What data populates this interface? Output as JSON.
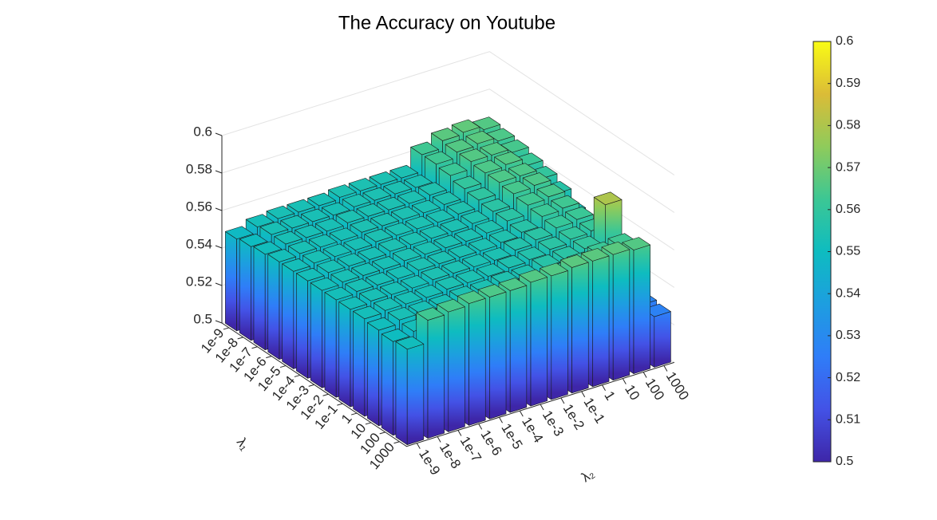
{
  "chart_data": {
    "type": "bar3",
    "title": "The Accuracy on Youtube",
    "x_label": "λ₂",
    "y_label": "λ₁",
    "x_categories": [
      "1e-9",
      "1e-8",
      "1e-7",
      "1e-6",
      "1e-5",
      "1e-4",
      "1e-3",
      "1e-2",
      "1e-1",
      "1",
      "10",
      "100",
      "1000"
    ],
    "y_categories": [
      "1e-9",
      "1e-8",
      "1e-7",
      "1e-6",
      "1e-5",
      "1e-4",
      "1e-3",
      "1e-2",
      "1e-1",
      "1",
      "10",
      "100",
      "1000"
    ],
    "values": [
      [
        0.549,
        0.552,
        0.553,
        0.553,
        0.553,
        0.554,
        0.554,
        0.554,
        0.554,
        0.563,
        0.567,
        0.568,
        0.566
      ],
      [
        0.55,
        0.553,
        0.553,
        0.553,
        0.553,
        0.554,
        0.554,
        0.554,
        0.554,
        0.563,
        0.566,
        0.567,
        0.565
      ],
      [
        0.551,
        0.553,
        0.553,
        0.553,
        0.554,
        0.554,
        0.554,
        0.554,
        0.555,
        0.562,
        0.566,
        0.566,
        0.564
      ],
      [
        0.552,
        0.553,
        0.553,
        0.553,
        0.554,
        0.554,
        0.554,
        0.554,
        0.555,
        0.56,
        0.565,
        0.566,
        0.562
      ],
      [
        0.552,
        0.553,
        0.553,
        0.553,
        0.554,
        0.554,
        0.554,
        0.554,
        0.555,
        0.559,
        0.565,
        0.565,
        0.56
      ],
      [
        0.552,
        0.553,
        0.553,
        0.553,
        0.554,
        0.554,
        0.554,
        0.554,
        0.555,
        0.558,
        0.564,
        0.565,
        0.557
      ],
      [
        0.552,
        0.553,
        0.553,
        0.553,
        0.554,
        0.554,
        0.554,
        0.554,
        0.555,
        0.558,
        0.563,
        0.564,
        0.552
      ],
      [
        0.552,
        0.553,
        0.553,
        0.553,
        0.554,
        0.554,
        0.554,
        0.554,
        0.555,
        0.557,
        0.562,
        0.563,
        0.545
      ],
      [
        0.552,
        0.553,
        0.553,
        0.553,
        0.554,
        0.554,
        0.554,
        0.554,
        0.556,
        0.558,
        0.561,
        0.562,
        0.535
      ],
      [
        0.552,
        0.553,
        0.553,
        0.553,
        0.554,
        0.554,
        0.554,
        0.555,
        0.556,
        0.558,
        0.56,
        0.561,
        0.528
      ],
      [
        0.551,
        0.553,
        0.553,
        0.553,
        0.554,
        0.554,
        0.555,
        0.555,
        0.557,
        0.558,
        0.56,
        0.58,
        0.525
      ],
      [
        0.55,
        0.552,
        0.553,
        0.553,
        0.554,
        0.554,
        0.555,
        0.556,
        0.558,
        0.56,
        0.562,
        0.563,
        0.528
      ],
      [
        0.551,
        0.563,
        0.564,
        0.565,
        0.565,
        0.565,
        0.566,
        0.566,
        0.567,
        0.567,
        0.567,
        0.566,
        0.527
      ]
    ],
    "zlim": [
      0.5,
      0.6
    ],
    "zticks": [
      0.5,
      0.52,
      0.54,
      0.56,
      0.58,
      0.6
    ],
    "grid": true,
    "colormap": [
      "#3e26a8",
      "#4352e6",
      "#2f7df8",
      "#1d9ee0",
      "#0ebcc0",
      "#3cc794",
      "#8fcb5b",
      "#dbbc37",
      "#f9fb15"
    ],
    "colorbar": {
      "lim": [
        0.5,
        0.6
      ],
      "ticks": [
        0.5,
        0.51,
        0.52,
        0.53,
        0.54,
        0.55,
        0.56,
        0.57,
        0.58,
        0.59,
        0.6
      ]
    }
  }
}
